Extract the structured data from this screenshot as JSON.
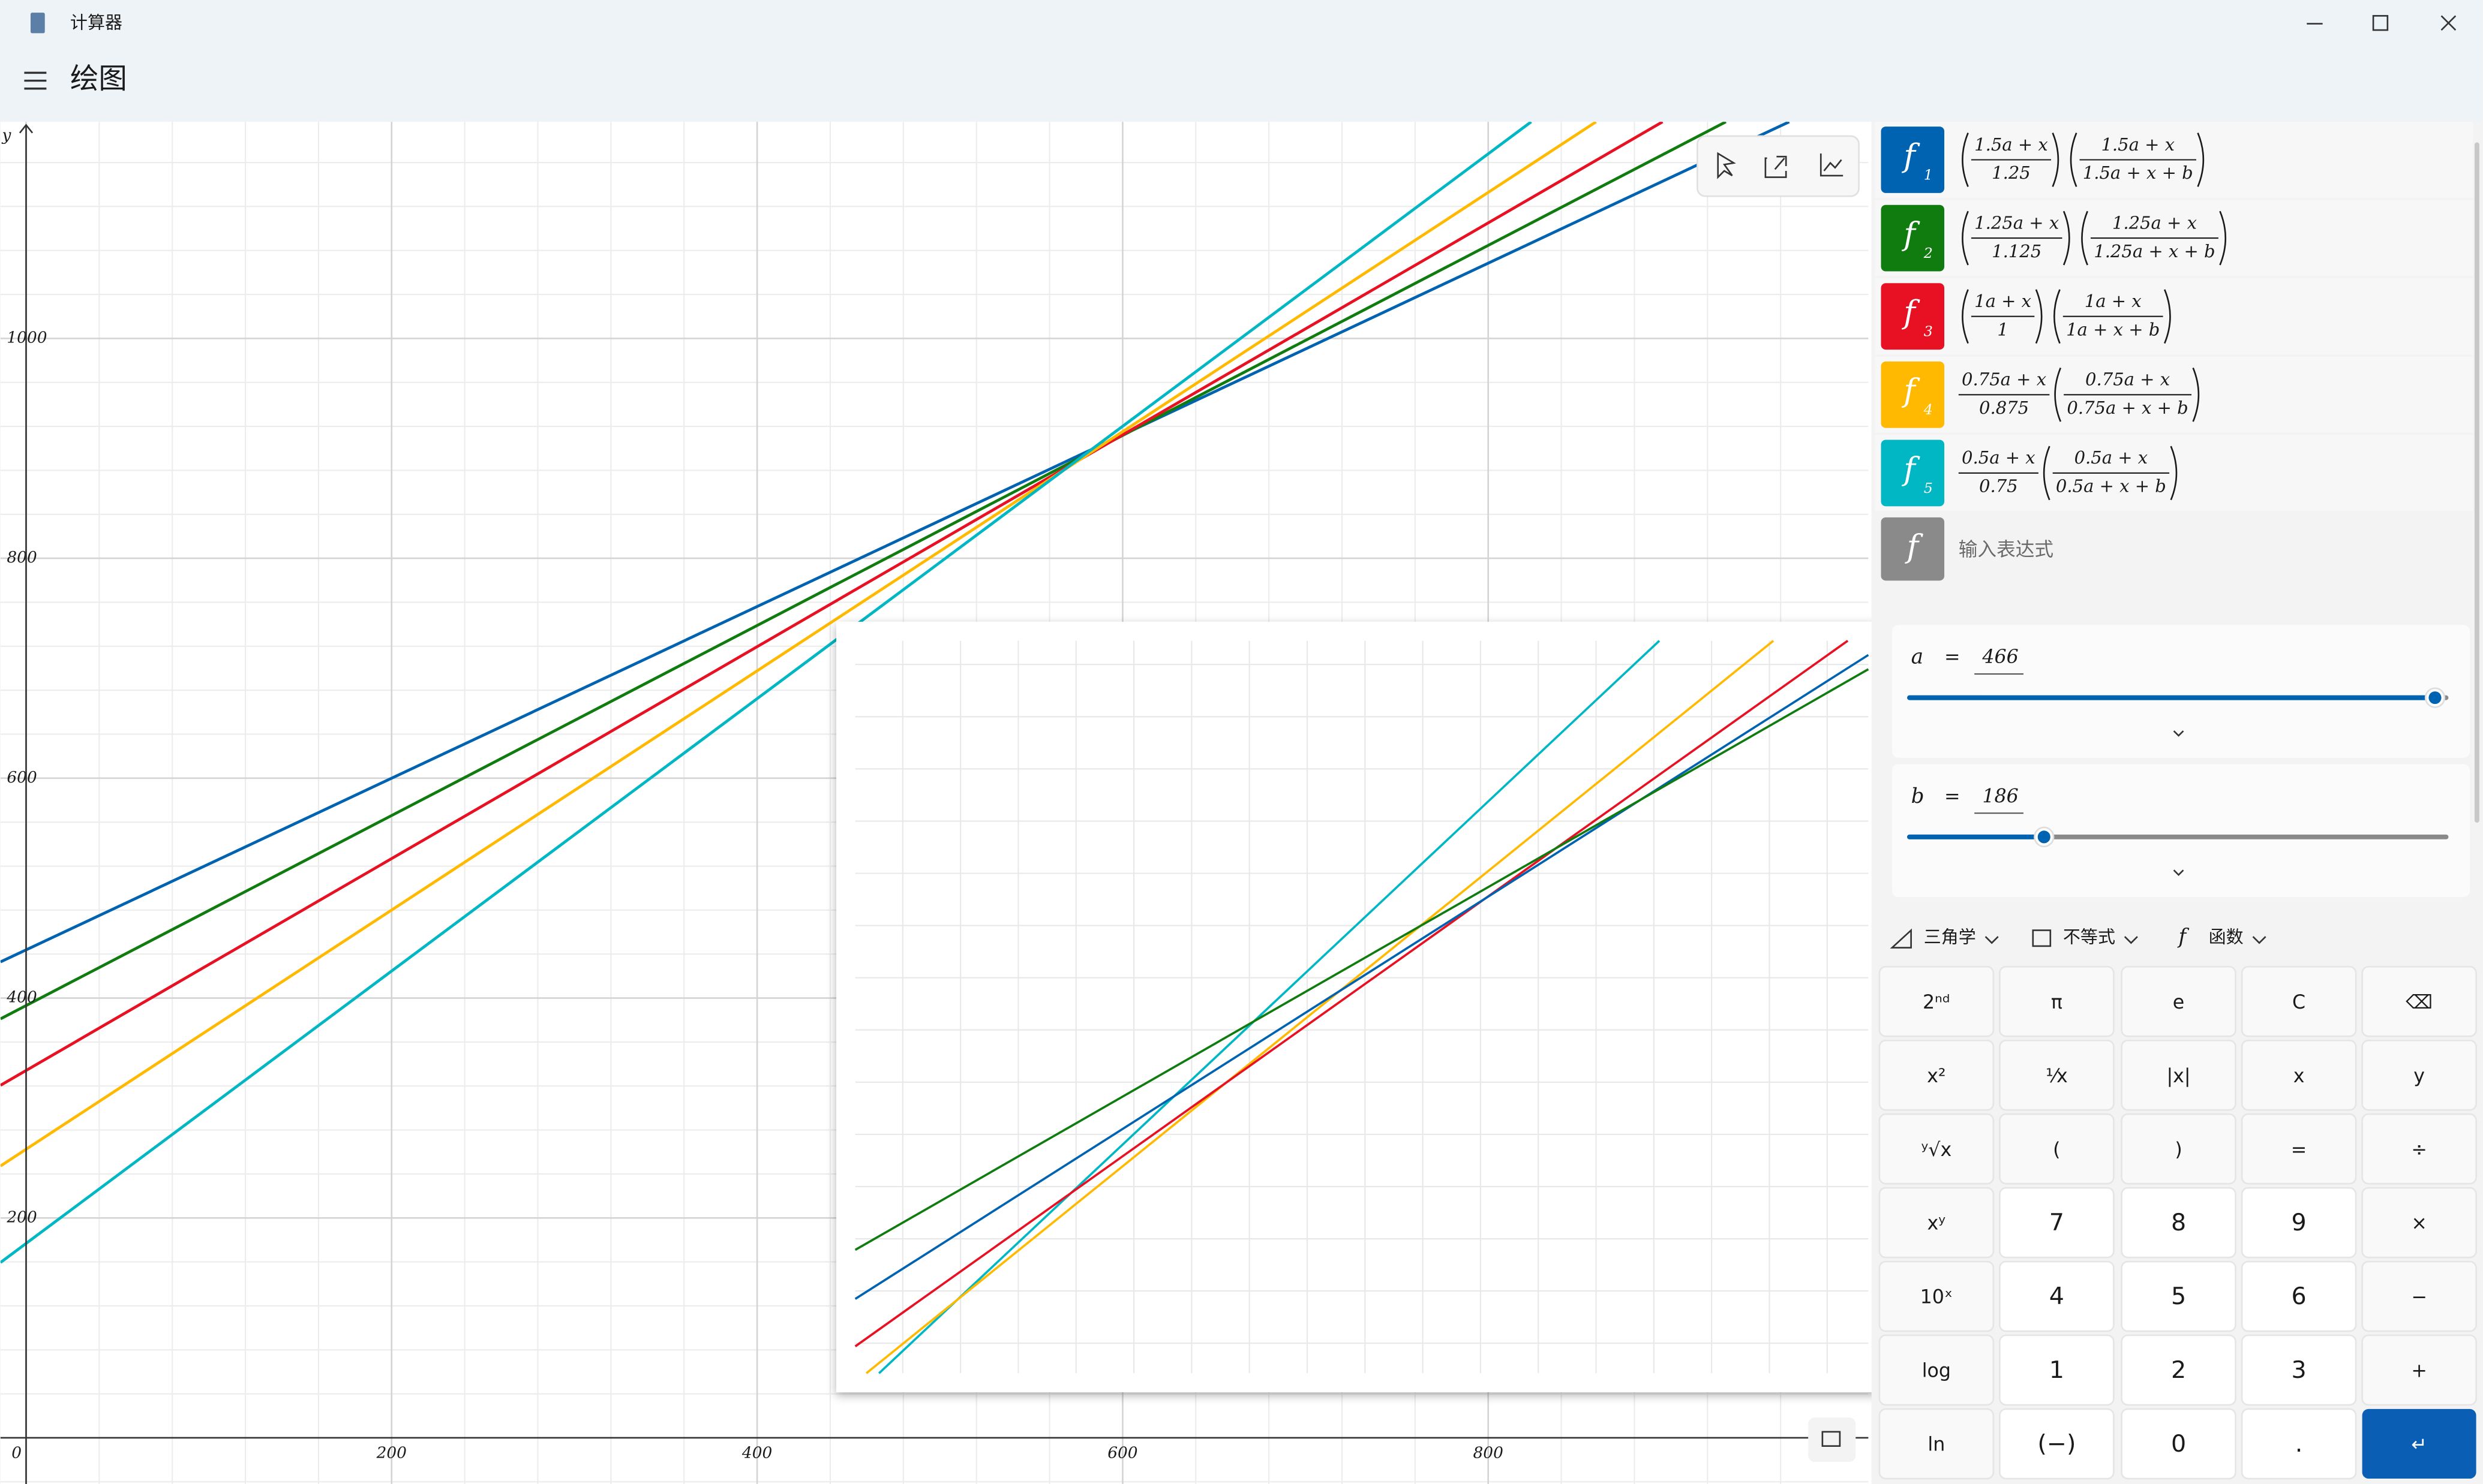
{
  "window": {
    "title": "计算器"
  },
  "header": {
    "title": "绘图"
  },
  "graph": {
    "y_label": "y",
    "xlim": [
      -14,
      1008
    ],
    "ylim": [
      -42,
      1197
    ],
    "xticks": [
      0,
      200,
      400,
      600,
      800
    ],
    "yticks": [
      200,
      400,
      600,
      800,
      1000
    ],
    "grid": true
  },
  "functions": [
    {
      "color": "#0063b1",
      "symbol": "f",
      "subscript": "1",
      "factors": [
        {
          "paren": true,
          "num": "1.5a + x",
          "den": "1.25"
        },
        {
          "paren": true,
          "num": "1.5a + x",
          "den": "1.5a + x + b"
        }
      ]
    },
    {
      "color": "#107c10",
      "symbol": "f",
      "subscript": "2",
      "factors": [
        {
          "paren": true,
          "num": "1.25a + x",
          "den": "1.125"
        },
        {
          "paren": true,
          "num": "1.25a + x",
          "den": "1.25a + x + b"
        }
      ]
    },
    {
      "color": "#e81123",
      "symbol": "f",
      "subscript": "3",
      "factors": [
        {
          "paren": true,
          "num": "1a + x",
          "den": "1"
        },
        {
          "paren": true,
          "num": "1a + x",
          "den": "1a + x + b"
        }
      ]
    },
    {
      "color": "#ffb900",
      "symbol": "f",
      "subscript": "4",
      "factors": [
        {
          "paren": false,
          "num": "0.75a + x",
          "den": "0.875"
        },
        {
          "paren": true,
          "num": "0.75a + x",
          "den": "0.75a + x + b"
        }
      ]
    },
    {
      "color": "#00b7c3",
      "symbol": "f",
      "subscript": "5",
      "factors": [
        {
          "paren": false,
          "num": "0.5a + x",
          "den": "0.75"
        },
        {
          "paren": true,
          "num": "0.5a + x",
          "den": "0.5a + x + b"
        }
      ]
    }
  ],
  "new_function": {
    "symbol": "f",
    "placeholder": "输入表达式"
  },
  "variables": [
    {
      "name": "a",
      "relation": "=",
      "value": 466
    },
    {
      "name": "b",
      "relation": "=",
      "value": 186
    }
  ],
  "toolbar": [
    "三角学",
    "不等式",
    "函数"
  ],
  "keypad": [
    [
      "2ⁿᵈ",
      "π",
      "e",
      "C",
      "⌫"
    ],
    [
      "x²",
      "¹⁄x",
      "|x|",
      "x",
      "y"
    ],
    [
      "ʸ√x",
      "(",
      ")",
      "=",
      "÷"
    ],
    [
      "xʸ",
      "7",
      "8",
      "9",
      "×"
    ],
    [
      "10ˣ",
      "4",
      "5",
      "6",
      "−"
    ],
    [
      "log",
      "1",
      "2",
      "3",
      "+"
    ],
    [
      "ln",
      "(−)",
      "0",
      ".",
      "↵"
    ]
  ]
}
